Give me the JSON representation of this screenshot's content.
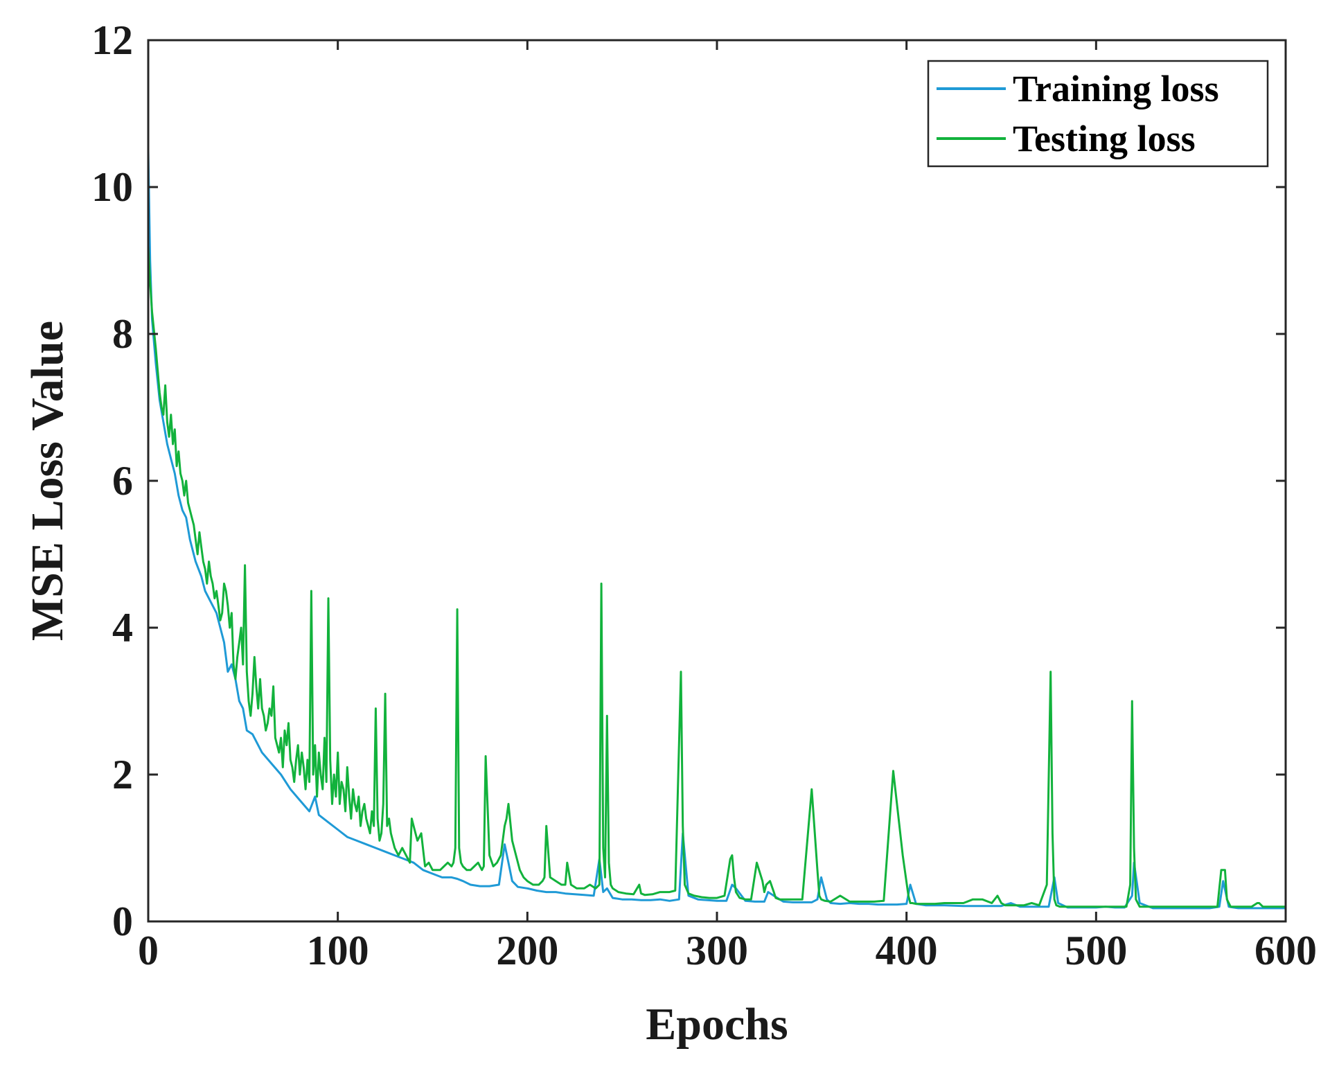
{
  "chart_data": {
    "type": "line",
    "xlabel": "Epochs",
    "ylabel": "MSE Loss Value",
    "xlim": [
      0,
      600
    ],
    "ylim": [
      0,
      12
    ],
    "xticks": [
      0,
      100,
      200,
      300,
      400,
      500,
      600
    ],
    "yticks": [
      0,
      2,
      4,
      6,
      8,
      10,
      12
    ],
    "grid": false,
    "legend_position": "top-right",
    "series": [
      {
        "name": "Training loss",
        "color": "#1f9ad6",
        "x": [
          0,
          1,
          2,
          4,
          6,
          8,
          10,
          12,
          14,
          16,
          18,
          20,
          22,
          25,
          28,
          30,
          33,
          36,
          38,
          40,
          42,
          44,
          46,
          48,
          50,
          52,
          55,
          58,
          60,
          65,
          70,
          75,
          80,
          85,
          88,
          90,
          95,
          100,
          105,
          110,
          115,
          120,
          125,
          130,
          135,
          140,
          145,
          150,
          155,
          160,
          163,
          166,
          170,
          175,
          180,
          185,
          188,
          190,
          192,
          195,
          200,
          205,
          210,
          215,
          220,
          225,
          230,
          235,
          238,
          240,
          242,
          245,
          250,
          255,
          260,
          265,
          270,
          275,
          280,
          282,
          285,
          290,
          295,
          300,
          305,
          308,
          310,
          315,
          320,
          325,
          327,
          330,
          335,
          340,
          345,
          350,
          353,
          355,
          358,
          360,
          365,
          370,
          375,
          380,
          385,
          390,
          395,
          400,
          402,
          405,
          410,
          415,
          420,
          430,
          440,
          450,
          455,
          460,
          465,
          470,
          475,
          478,
          480,
          485,
          490,
          495,
          500,
          505,
          510,
          515,
          519,
          520,
          523,
          530,
          540,
          550,
          560,
          565,
          567,
          570,
          575,
          580,
          585,
          590,
          595,
          600
        ],
        "y": [
          10.5,
          9.0,
          8.2,
          7.6,
          7.1,
          6.8,
          6.5,
          6.3,
          6.1,
          5.8,
          5.6,
          5.5,
          5.2,
          4.9,
          4.7,
          4.5,
          4.35,
          4.2,
          4.0,
          3.8,
          3.4,
          3.5,
          3.3,
          3.0,
          2.9,
          2.6,
          2.55,
          2.4,
          2.3,
          2.15,
          2.0,
          1.8,
          1.65,
          1.5,
          1.7,
          1.45,
          1.35,
          1.25,
          1.15,
          1.1,
          1.05,
          1.0,
          0.95,
          0.9,
          0.85,
          0.8,
          0.7,
          0.65,
          0.6,
          0.6,
          0.58,
          0.55,
          0.5,
          0.48,
          0.48,
          0.5,
          1.05,
          0.8,
          0.55,
          0.47,
          0.45,
          0.42,
          0.4,
          0.4,
          0.38,
          0.37,
          0.36,
          0.35,
          0.85,
          0.4,
          0.45,
          0.32,
          0.3,
          0.3,
          0.29,
          0.29,
          0.3,
          0.28,
          0.3,
          1.2,
          0.35,
          0.3,
          0.29,
          0.28,
          0.28,
          0.5,
          0.45,
          0.28,
          0.27,
          0.27,
          0.4,
          0.35,
          0.27,
          0.26,
          0.26,
          0.26,
          0.3,
          0.6,
          0.3,
          0.25,
          0.24,
          0.25,
          0.24,
          0.24,
          0.23,
          0.23,
          0.23,
          0.24,
          0.5,
          0.24,
          0.22,
          0.22,
          0.22,
          0.21,
          0.21,
          0.21,
          0.25,
          0.2,
          0.2,
          0.2,
          0.2,
          0.6,
          0.25,
          0.19,
          0.19,
          0.19,
          0.19,
          0.2,
          0.19,
          0.19,
          0.35,
          0.8,
          0.25,
          0.18,
          0.18,
          0.18,
          0.18,
          0.2,
          0.55,
          0.2,
          0.18,
          0.18,
          0.18,
          0.18,
          0.18,
          0.18
        ]
      },
      {
        "name": "Testing loss",
        "color": "#12b23c",
        "x": [
          0,
          1,
          2,
          4,
          6,
          7,
          8,
          9,
          10,
          11,
          12,
          13,
          14,
          15,
          16,
          17,
          18,
          19,
          20,
          21,
          22,
          23,
          24,
          25,
          26,
          27,
          28,
          29,
          30,
          31,
          32,
          33,
          34,
          35,
          36,
          37,
          38,
          39,
          40,
          41,
          42,
          43,
          44,
          45,
          46,
          47,
          48,
          49,
          50,
          51,
          52,
          53,
          54,
          55,
          56,
          57,
          58,
          59,
          60,
          61,
          62,
          63,
          64,
          65,
          66,
          67,
          68,
          69,
          70,
          71,
          72,
          73,
          74,
          75,
          76,
          77,
          78,
          79,
          80,
          81,
          82,
          83,
          84,
          85,
          86,
          87,
          88,
          89,
          90,
          91,
          92,
          93,
          94,
          95,
          96,
          97,
          98,
          99,
          100,
          101,
          102,
          103,
          104,
          105,
          106,
          107,
          108,
          109,
          110,
          111,
          112,
          113,
          114,
          115,
          116,
          117,
          118,
          119,
          120,
          121,
          122,
          123,
          124,
          125,
          126,
          127,
          128,
          129,
          130,
          132,
          134,
          136,
          138,
          139,
          140,
          142,
          144,
          146,
          148,
          150,
          152,
          154,
          156,
          158,
          160,
          161,
          162,
          163,
          164,
          165,
          166,
          168,
          170,
          172,
          174,
          176,
          177,
          178,
          180,
          182,
          184,
          186,
          188,
          189,
          190,
          192,
          194,
          196,
          198,
          200,
          203,
          206,
          208,
          209,
          210,
          212,
          215,
          218,
          220,
          221,
          223,
          226,
          230,
          233,
          236,
          238,
          239,
          240,
          241,
          242,
          243,
          244,
          245,
          248,
          252,
          256,
          259,
          260,
          262,
          266,
          270,
          275,
          278,
          281,
          282,
          283,
          285,
          288,
          292,
          296,
          300,
          304,
          307,
          308,
          309,
          310,
          312,
          315,
          318,
          321,
          324,
          325,
          326,
          328,
          330,
          331,
          333,
          336,
          340,
          345,
          350,
          353,
          354,
          355,
          357,
          360,
          365,
          370,
          372,
          374,
          378,
          383,
          388,
          393,
          398,
          401,
          402,
          403,
          405,
          410,
          415,
          420,
          425,
          430,
          435,
          440,
          445,
          448,
          450,
          452,
          455,
          458,
          462,
          466,
          470,
          474,
          476,
          477,
          478,
          479,
          481,
          484,
          488,
          492,
          496,
          500,
          504,
          508,
          512,
          516,
          518,
          519,
          520,
          521,
          523,
          526,
          530,
          535,
          540,
          545,
          550,
          555,
          560,
          564,
          566,
          567,
          568,
          569,
          571,
          574,
          578,
          582,
          585,
          586,
          588,
          592,
          596,
          600
        ],
        "y": [
          9.2,
          8.7,
          8.3,
          7.8,
          7.2,
          7.0,
          6.9,
          7.3,
          6.8,
          6.6,
          6.9,
          6.5,
          6.7,
          6.2,
          6.4,
          6.1,
          6.0,
          5.8,
          6.0,
          5.7,
          5.6,
          5.5,
          5.4,
          5.2,
          5.0,
          5.3,
          5.1,
          4.9,
          4.8,
          4.6,
          4.9,
          4.7,
          4.6,
          4.4,
          4.5,
          4.3,
          4.1,
          4.2,
          4.6,
          4.5,
          4.3,
          4.0,
          4.2,
          3.5,
          3.3,
          3.6,
          3.8,
          4.0,
          3.5,
          4.85,
          3.4,
          3.0,
          2.8,
          3.1,
          3.6,
          3.2,
          2.9,
          3.3,
          2.9,
          2.8,
          2.6,
          2.7,
          2.9,
          2.8,
          3.2,
          2.5,
          2.4,
          2.3,
          2.5,
          2.1,
          2.6,
          2.4,
          2.7,
          2.2,
          2.1,
          1.9,
          2.2,
          2.4,
          2.0,
          2.3,
          2.1,
          1.8,
          2.2,
          1.9,
          4.5,
          2.0,
          2.4,
          1.7,
          2.3,
          2.0,
          1.8,
          2.5,
          1.9,
          4.4,
          2.2,
          1.6,
          2.0,
          1.7,
          2.3,
          1.6,
          1.9,
          1.8,
          1.5,
          2.1,
          1.7,
          1.4,
          1.8,
          1.6,
          1.5,
          1.7,
          1.3,
          1.5,
          1.6,
          1.4,
          1.3,
          1.2,
          1.5,
          1.3,
          2.9,
          1.4,
          1.1,
          1.2,
          1.6,
          3.1,
          1.3,
          1.4,
          1.2,
          1.1,
          1.0,
          0.9,
          1.0,
          0.9,
          0.8,
          1.4,
          1.3,
          1.1,
          1.2,
          0.75,
          0.8,
          0.7,
          0.7,
          0.7,
          0.75,
          0.8,
          0.75,
          0.8,
          1.0,
          4.25,
          1.0,
          0.8,
          0.75,
          0.7,
          0.7,
          0.75,
          0.8,
          0.7,
          0.75,
          2.25,
          0.9,
          0.75,
          0.8,
          0.9,
          1.3,
          1.4,
          1.6,
          1.1,
          0.9,
          0.7,
          0.6,
          0.55,
          0.5,
          0.5,
          0.55,
          0.6,
          1.3,
          0.6,
          0.55,
          0.5,
          0.5,
          0.8,
          0.5,
          0.45,
          0.45,
          0.5,
          0.45,
          0.5,
          4.6,
          1.0,
          0.6,
          2.8,
          0.8,
          0.5,
          0.45,
          0.4,
          0.38,
          0.37,
          0.5,
          0.38,
          0.36,
          0.37,
          0.4,
          0.4,
          0.42,
          3.4,
          1.3,
          0.5,
          0.38,
          0.35,
          0.33,
          0.32,
          0.32,
          0.35,
          0.85,
          0.9,
          0.6,
          0.4,
          0.32,
          0.3,
          0.3,
          0.8,
          0.55,
          0.4,
          0.5,
          0.55,
          0.4,
          0.32,
          0.3,
          0.3,
          0.3,
          0.3,
          1.8,
          0.7,
          0.35,
          0.3,
          0.28,
          0.27,
          0.35,
          0.27,
          0.27,
          0.27,
          0.27,
          0.27,
          0.28,
          2.05,
          0.9,
          0.35,
          0.25,
          0.25,
          0.24,
          0.24,
          0.24,
          0.25,
          0.25,
          0.25,
          0.3,
          0.3,
          0.25,
          0.35,
          0.25,
          0.22,
          0.22,
          0.22,
          0.22,
          0.25,
          0.22,
          0.5,
          3.4,
          1.2,
          0.3,
          0.22,
          0.2,
          0.2,
          0.2,
          0.2,
          0.2,
          0.2,
          0.2,
          0.2,
          0.2,
          0.2,
          0.5,
          3.0,
          1.0,
          0.3,
          0.2,
          0.2,
          0.2,
          0.2,
          0.2,
          0.2,
          0.2,
          0.2,
          0.2,
          0.2,
          0.7,
          0.7,
          0.7,
          0.3,
          0.2,
          0.2,
          0.2,
          0.2,
          0.25,
          0.25,
          0.2,
          0.2,
          0.2,
          0.2
        ]
      }
    ]
  }
}
